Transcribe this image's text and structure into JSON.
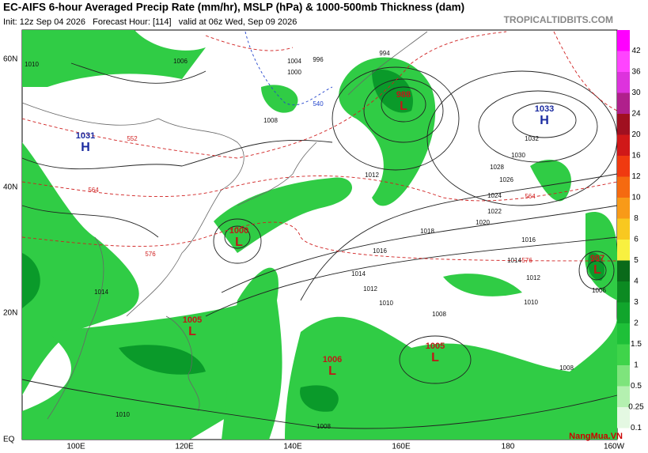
{
  "header": {
    "title": "EC-AIFS 6-hour Averaged Precip Rate (mm/hr), MSLP (hPa) & 1000-500mb Thickness (dam)",
    "subtitle": "Init: 12z Sep 04 2026   Forecast Hour: [114]   valid at 06z Wed, Sep 09 2026",
    "site": "TROPICALTIDBITS.COM"
  },
  "colorbar": {
    "labels": [
      "42",
      "36",
      "30",
      "24",
      "20",
      "16",
      "12",
      "10",
      "8",
      "6",
      "5",
      "4",
      "3",
      "2",
      "1.5",
      "1",
      "0.5",
      "0.25",
      "0.1"
    ],
    "colors": [
      "#ff00ff",
      "#ff44ff",
      "#dd33dd",
      "#b0208c",
      "#a01020",
      "#d01818",
      "#f03a10",
      "#f56a10",
      "#f89a18",
      "#f8c820",
      "#f8f040",
      "#0a6a1a",
      "#0c8a22",
      "#11a52c",
      "#1ec038",
      "#3fd44a",
      "#7ee47c",
      "#b4f0b0",
      "#e4f8e2"
    ]
  },
  "axes": {
    "lat": [
      "60N",
      "40N",
      "20N",
      "EQ"
    ],
    "lon": [
      "100E",
      "120E",
      "140E",
      "160E",
      "180",
      "160W"
    ]
  },
  "centers": [
    {
      "value": "1031",
      "kind": "H"
    },
    {
      "value": "988",
      "kind": "L"
    },
    {
      "value": "1033",
      "kind": "H"
    },
    {
      "value": "1000",
      "kind": "L"
    },
    {
      "value": "987",
      "kind": "L"
    },
    {
      "value": "1005",
      "kind": "L"
    },
    {
      "value": "1006",
      "kind": "L"
    },
    {
      "value": "1005",
      "kind": "L"
    }
  ],
  "isobars": [
    "1010",
    "1006",
    "1004",
    "1000",
    "996",
    "994",
    "1008",
    "1012",
    "1016",
    "1018",
    "1020",
    "1022",
    "1024",
    "1026",
    "1028",
    "1030",
    "1032",
    "1014",
    "1016",
    "1014",
    "1012",
    "1010",
    "1008",
    "1008",
    "1010",
    "1014",
    "1012",
    "1010",
    "1006",
    "1008"
  ],
  "thickness": [
    "552",
    "564",
    "576",
    "540",
    "576",
    "564"
  ],
  "logo": "NangMua.VN"
}
